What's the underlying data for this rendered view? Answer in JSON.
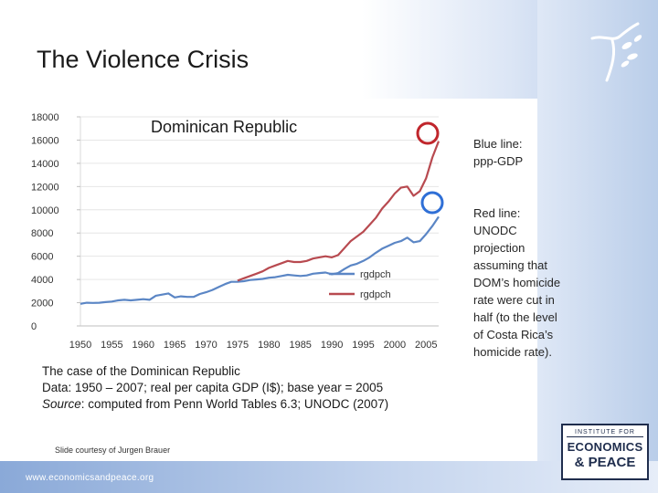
{
  "slide": {
    "title": "The Violence Crisis",
    "blue_note": [
      "Blue line:",
      "ppp-GDP"
    ],
    "red_note": [
      "Red line:",
      "UNODC",
      "projection",
      "assuming that",
      "DOM’s homicide",
      "rate were cut in",
      "half (to the level",
      "of Costa Rica’s",
      "homicide rate)."
    ],
    "caption": {
      "line1": "The case of the Dominican Republic",
      "line2": "Data: 1950 – 2007; real per capita GDP (I$); base year = 2005",
      "line3_italic": "Source",
      "line3_rest": ": computed from Penn World Tables 6.3; UNODC (2007)"
    },
    "credit": "Slide courtesy of Jurgen Brauer",
    "url": "www.economicsandpeace.org",
    "logo": {
      "line1": "INSTITUTE FOR",
      "line2": "ECONOMICS",
      "line3": "& PEACE"
    },
    "icons": {
      "logo_mark": "bird-branch-icon"
    },
    "colors": {
      "blue": "#5b86c5",
      "red": "#b84a50",
      "circle_red": "#c0262c",
      "circle_blue": "#2f6fd6"
    }
  },
  "chart_data": {
    "type": "line",
    "title": "Dominican Republic",
    "xlabel": "",
    "ylabel": "",
    "xlim": [
      1950,
      2007
    ],
    "ylim": [
      0,
      18000
    ],
    "x_ticks": [
      1950,
      1955,
      1960,
      1965,
      1970,
      1975,
      1980,
      1985,
      1990,
      1995,
      2000,
      2005
    ],
    "y_ticks": [
      0,
      2000,
      4000,
      6000,
      8000,
      10000,
      12000,
      14000,
      16000,
      18000
    ],
    "legend_position": "right",
    "grid": true,
    "series": [
      {
        "name": "rgdpch",
        "color": "#5b86c5",
        "x": [
          1950,
          1951,
          1952,
          1953,
          1954,
          1955,
          1956,
          1957,
          1958,
          1959,
          1960,
          1961,
          1962,
          1963,
          1964,
          1965,
          1966,
          1967,
          1968,
          1969,
          1970,
          1971,
          1972,
          1973,
          1974,
          1975,
          1976,
          1977,
          1978,
          1979,
          1980,
          1981,
          1982,
          1983,
          1984,
          1985,
          1986,
          1987,
          1988,
          1989,
          1990,
          1991,
          1992,
          1993,
          1994,
          1995,
          1996,
          1997,
          1998,
          1999,
          2000,
          2001,
          2002,
          2003,
          2004,
          2005,
          2006,
          2007
        ],
        "values": [
          1900,
          2000,
          1980,
          2000,
          2050,
          2100,
          2200,
          2250,
          2200,
          2250,
          2300,
          2250,
          2600,
          2700,
          2800,
          2450,
          2550,
          2500,
          2500,
          2750,
          2900,
          3100,
          3350,
          3600,
          3800,
          3800,
          3850,
          3950,
          4000,
          4050,
          4150,
          4200,
          4300,
          4400,
          4350,
          4300,
          4350,
          4500,
          4550,
          4600,
          4450,
          4550,
          4900,
          5200,
          5350,
          5600,
          5900,
          6300,
          6650,
          6900,
          7150,
          7300,
          7600,
          7200,
          7300,
          7900,
          8600,
          9400
        ]
      },
      {
        "name": "rgdpch",
        "color": "#b84a50",
        "x": [
          1975,
          1976,
          1977,
          1978,
          1979,
          1980,
          1981,
          1982,
          1983,
          1984,
          1985,
          1986,
          1987,
          1988,
          1989,
          1990,
          1991,
          1992,
          1993,
          1994,
          1995,
          1996,
          1997,
          1998,
          1999,
          2000,
          2001,
          2002,
          2003,
          2004,
          2005,
          2006,
          2007
        ],
        "values": [
          3900,
          4100,
          4300,
          4500,
          4700,
          5000,
          5200,
          5400,
          5600,
          5500,
          5500,
          5600,
          5800,
          5900,
          6000,
          5900,
          6100,
          6700,
          7300,
          7700,
          8100,
          8700,
          9300,
          10100,
          10700,
          11400,
          11900,
          12000,
          11200,
          11600,
          12700,
          14500,
          15900
        ]
      }
    ]
  }
}
